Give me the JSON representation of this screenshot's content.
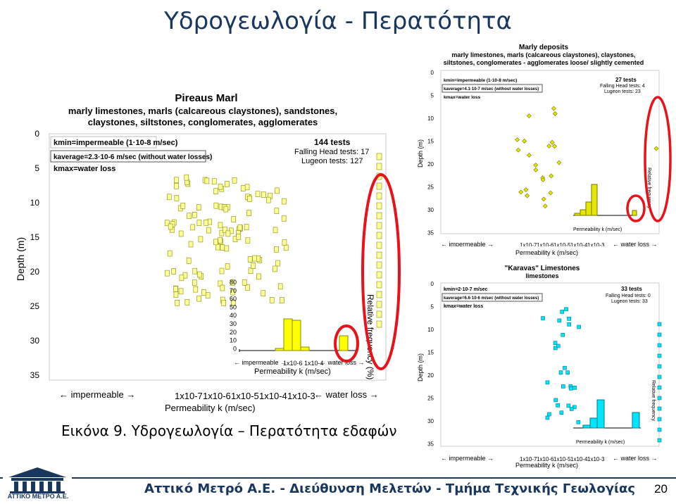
{
  "slide": {
    "title": "Υδρογεωλογία - Περατότητα",
    "caption": "Εικόνα 9. Υδρογεωλογία – Περατότητα εδαφών",
    "footer": "Αττικό Μετρό Α.Ε. - Διεύθυνση Μελετών - Τμήμα Τεχνικής Γεωλογίας",
    "page_number": "20",
    "logo_text": "ΑΤΤΙΚΟ ΜΕΤΡΟ Α.Ε."
  },
  "colors": {
    "title": "#17375e",
    "highlight": "#e8121a",
    "marl_yellow": "#ffff00",
    "karavas_cyan": "#00e5ff",
    "marly_yellow": "#e6e600"
  },
  "panels": {
    "pireaus": {
      "title": "Pireaus Marl",
      "subtitle_1": "marly limestones, marls (calcareous claystones), sandstones,",
      "subtitle_2": "claystones, siltstones, conglomerates, agglomerates",
      "kmin": "kmin=impermeable (1·10-8 m/sec)",
      "kavg": "kaverage=2.3·10-6 m/sec (without water losses)",
      "kmax": "kmax=water loss",
      "tests": "144 tests",
      "falling": "Falling Head tests: 17",
      "lugeon": "Lugeon tests: 127",
      "y_axis_label": "Depth (m)",
      "y_ticks": [
        "0",
        "5",
        "10",
        "15",
        "20",
        "25",
        "30",
        "35"
      ],
      "freq_label": "Relative frequency (%)",
      "freq_ticks": [
        "80",
        "70",
        "60",
        "50",
        "40",
        "30",
        "20",
        "10",
        "0"
      ],
      "x_impermeable": "impermeable",
      "x_ticks": [
        "1x10-7",
        "1x10-6",
        "1x10-5",
        "1x10-4",
        "1x10-3"
      ],
      "x_waterloss": "water loss",
      "x_label": "Permeability k (m/sec)",
      "inset_impermeable": "impermeable",
      "inset_ticks": [
        "1x10-6",
        "1x10-4"
      ],
      "inset_waterloss": "water loss",
      "inset_label": "Permeability k (m/sec)"
    },
    "marly": {
      "title": "Marly deposits",
      "subtitle_1": "marly limestones, marls (calcareous claystones), claystones,",
      "subtitle_2": "siltstones, conglomerates - agglomerates loose/ slightly cemented",
      "kmin": "kmin=impermeable (1·10-8 m/sec)",
      "kavg": "kaverage=4.1·10-7 m/sec (without water losses)",
      "kmax": "kmax=water loss",
      "tests": "27 tests",
      "falling": "Falling Head tests: 4",
      "lugeon": "Lugeon tests: 23",
      "y_axis_label": "Depth (m)",
      "y_ticks": [
        "0",
        "5",
        "10",
        "15",
        "20",
        "25",
        "30",
        "35"
      ],
      "freq_label": "Relative frequency",
      "x_impermeable": "impermeable",
      "x_ticks": [
        "1x10-7",
        "1x10-6",
        "1x10-5",
        "1x10-4",
        "1x10-3"
      ],
      "x_waterloss": "water loss",
      "x_label": "Permeability k (m/sec)",
      "inset_label": "Permeability k (m/sec)"
    },
    "karavas": {
      "title": "\"Karavas\" Limestones",
      "subtitle_1": "limestones",
      "kmin": "kmin=2·10-7 m/sec",
      "kavg": "kaverage=6.6·10-6 m/sec (without water losses)",
      "kmax": "kmax=water loss",
      "tests": "33 tests",
      "falling": "Falling Head tests: 0",
      "lugeon": "Lugeon tests: 33",
      "y_axis_label": "Depth (m)",
      "y_ticks": [
        "0",
        "5",
        "10",
        "15",
        "20",
        "25",
        "30",
        "35"
      ],
      "freq_label": "Relative frequency",
      "x_impermeable": "impermeable",
      "x_ticks": [
        "1x10-7",
        "1x10-6",
        "1x10-5",
        "1x10-4",
        "1x10-3"
      ],
      "x_waterloss": "water loss",
      "x_label": "Permeability k (m/sec)",
      "inset_label": "Permeability k (m/sec)"
    }
  }
}
